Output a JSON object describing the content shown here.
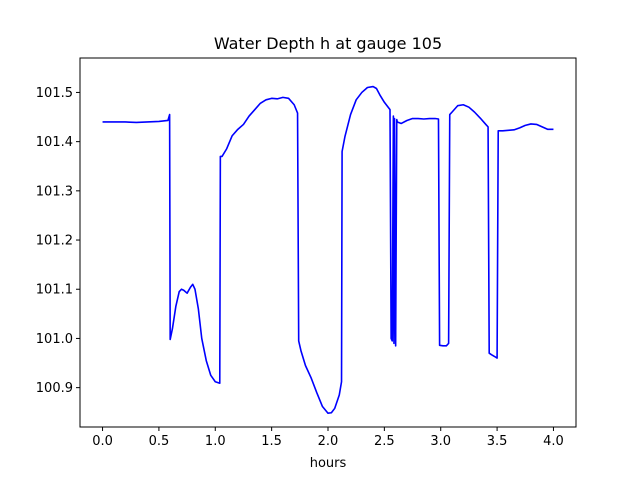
{
  "chart_data": {
    "type": "line",
    "title": "Water Depth h at gauge 105",
    "xlabel": "hours",
    "ylabel": "",
    "xlim": [
      -0.2,
      4.2
    ],
    "ylim": [
      100.82,
      101.57
    ],
    "xticks": [
      0.0,
      0.5,
      1.0,
      1.5,
      2.0,
      2.5,
      3.0,
      3.5,
      4.0
    ],
    "xtick_labels": [
      "0.0",
      "0.5",
      "1.0",
      "1.5",
      "2.0",
      "2.5",
      "3.0",
      "3.5",
      "4.0"
    ],
    "yticks": [
      100.9,
      101.0,
      101.1,
      101.2,
      101.3,
      101.4,
      101.5
    ],
    "ytick_labels": [
      "100.9",
      "101.0",
      "101.1",
      "101.2",
      "101.3",
      "101.4",
      "101.5"
    ],
    "grid": false,
    "legend": "none",
    "series": [
      {
        "color": "#0000ff",
        "x": [
          0.0,
          0.1,
          0.2,
          0.3,
          0.4,
          0.5,
          0.58,
          0.595,
          0.6,
          0.62,
          0.65,
          0.68,
          0.7,
          0.72,
          0.75,
          0.78,
          0.8,
          0.82,
          0.85,
          0.88,
          0.92,
          0.96,
          1.0,
          1.04,
          1.045,
          1.06,
          1.1,
          1.15,
          1.2,
          1.25,
          1.3,
          1.35,
          1.4,
          1.45,
          1.5,
          1.55,
          1.6,
          1.65,
          1.7,
          1.73,
          1.74,
          1.76,
          1.8,
          1.85,
          1.9,
          1.95,
          2.0,
          2.03,
          2.06,
          2.1,
          2.12,
          2.125,
          2.15,
          2.2,
          2.25,
          2.3,
          2.35,
          2.4,
          2.43,
          2.46,
          2.5,
          2.55,
          2.56,
          2.57,
          2.58,
          2.585,
          2.59,
          2.6,
          2.61,
          2.615,
          2.65,
          2.7,
          2.75,
          2.8,
          2.85,
          2.9,
          2.95,
          2.98,
          2.99,
          3.02,
          3.05,
          3.07,
          3.08,
          3.1,
          3.15,
          3.2,
          3.25,
          3.3,
          3.35,
          3.4,
          3.42,
          3.43,
          3.45,
          3.48,
          3.5,
          3.51,
          3.55,
          3.6,
          3.65,
          3.7,
          3.75,
          3.8,
          3.85,
          3.9,
          3.95,
          4.0
        ],
        "values": [
          101.44,
          101.44,
          101.44,
          101.439,
          101.44,
          101.441,
          101.443,
          101.455,
          100.998,
          101.02,
          101.065,
          101.095,
          101.1,
          101.098,
          101.092,
          101.104,
          101.11,
          101.1,
          101.06,
          101.0,
          100.955,
          100.925,
          100.912,
          100.909,
          101.37,
          101.37,
          101.385,
          101.412,
          101.425,
          101.435,
          101.452,
          101.465,
          101.478,
          101.485,
          101.488,
          101.487,
          101.49,
          101.488,
          101.475,
          101.458,
          100.995,
          100.975,
          100.945,
          100.92,
          100.89,
          100.862,
          100.848,
          100.849,
          100.858,
          100.885,
          100.912,
          101.38,
          101.41,
          101.455,
          101.485,
          101.5,
          101.51,
          101.512,
          101.508,
          101.495,
          101.48,
          101.465,
          101.0,
          100.995,
          101.452,
          100.99,
          101.447,
          100.985,
          101.445,
          101.44,
          101.437,
          101.443,
          101.447,
          101.447,
          101.446,
          101.447,
          101.447,
          101.446,
          100.986,
          100.985,
          100.985,
          100.99,
          101.455,
          101.46,
          101.473,
          101.475,
          101.47,
          101.46,
          101.448,
          101.435,
          101.43,
          100.97,
          100.967,
          100.963,
          100.96,
          101.422,
          101.422,
          101.423,
          101.424,
          101.428,
          101.433,
          101.436,
          101.435,
          101.43,
          101.425,
          101.425
        ]
      }
    ]
  }
}
